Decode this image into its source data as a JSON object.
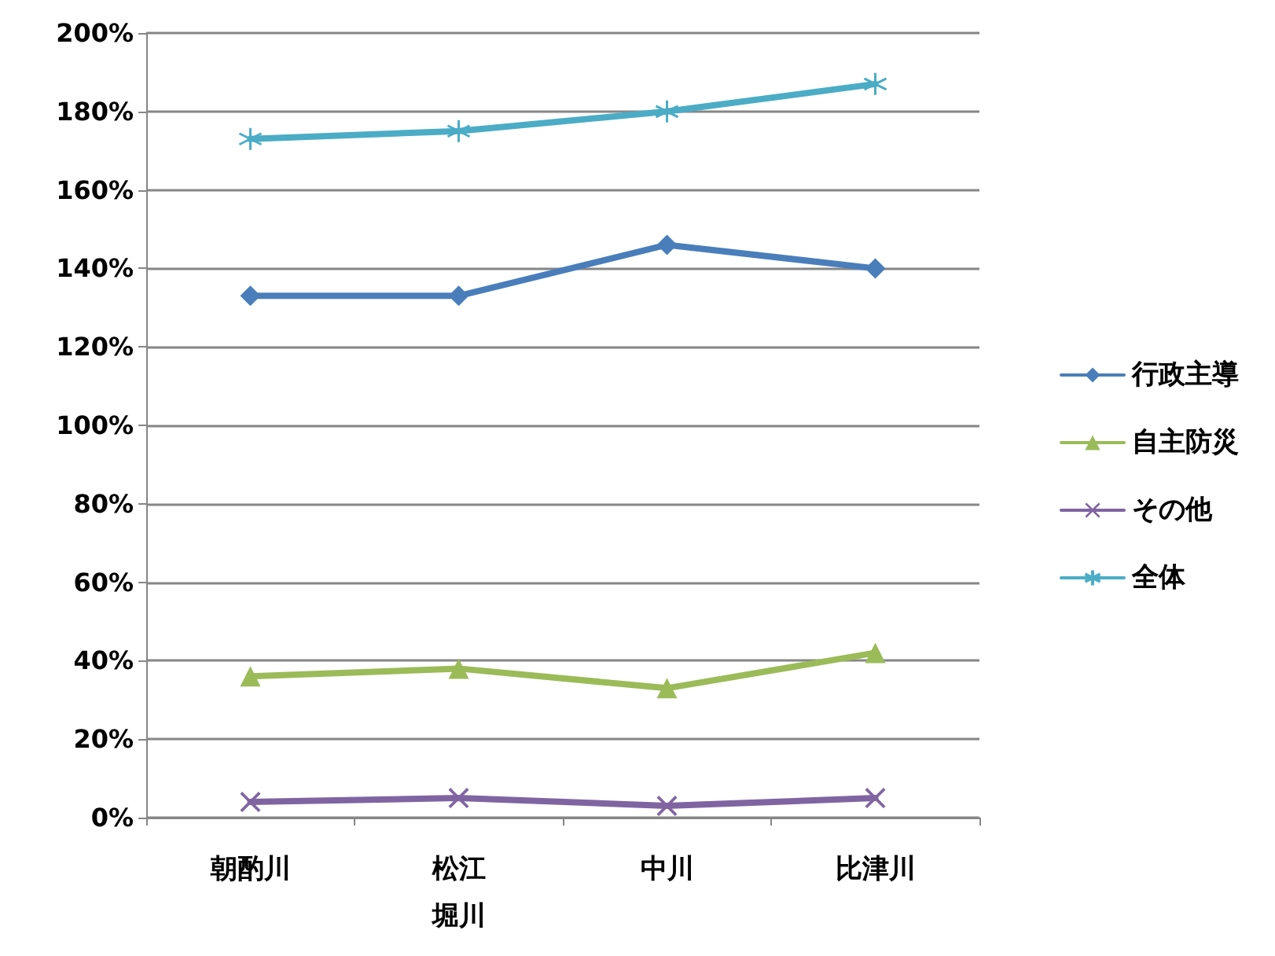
{
  "chart_data": {
    "type": "line",
    "categories": [
      "朝酌川",
      "松江堀川",
      "中川",
      "比津川"
    ],
    "series": [
      {
        "name": "行政主導",
        "color": "#4a7ebb",
        "marker": "diamond",
        "values": [
          133,
          133,
          146,
          140
        ]
      },
      {
        "name": "自主防災",
        "color": "#9bbb59",
        "marker": "triangle",
        "values": [
          36,
          38,
          33,
          42
        ]
      },
      {
        "name": "その他",
        "color": "#8064a2",
        "marker": "cross",
        "values": [
          4,
          5,
          3,
          5
        ]
      },
      {
        "name": "全体",
        "color": "#4bacc6",
        "marker": "star",
        "values": [
          173,
          175,
          180,
          187
        ]
      }
    ],
    "ylim": [
      0,
      200
    ],
    "yticks": [
      {
        "value": 0,
        "label": "0%"
      },
      {
        "value": 20,
        "label": "20%"
      },
      {
        "value": 40,
        "label": "40%"
      },
      {
        "value": 60,
        "label": "60%"
      },
      {
        "value": 80,
        "label": "80%"
      },
      {
        "value": 100,
        "label": "100%"
      },
      {
        "value": 120,
        "label": "120%"
      },
      {
        "value": 140,
        "label": "140%"
      },
      {
        "value": 160,
        "label": "160%"
      },
      {
        "value": 180,
        "label": "180%"
      },
      {
        "value": 200,
        "label": "200%"
      }
    ],
    "grid": "y",
    "legend": "right",
    "line_style": "solid"
  }
}
